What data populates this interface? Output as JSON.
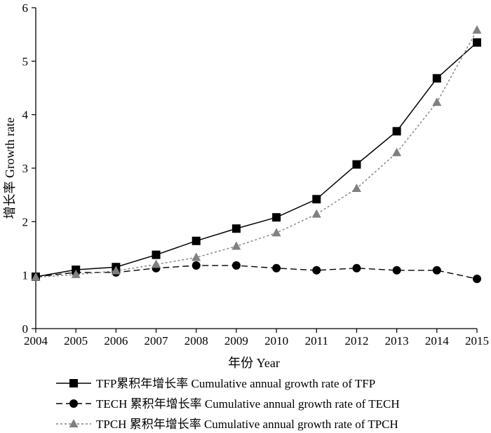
{
  "chart_data": {
    "type": "line",
    "x": [
      2004,
      2005,
      2006,
      2007,
      2008,
      2009,
      2010,
      2011,
      2012,
      2013,
      2014,
      2015
    ],
    "xlabel": "年份 Year",
    "ylabel": "增长率 Growth rate",
    "ylim": [
      0,
      6
    ],
    "yticks": [
      0,
      1,
      2,
      3,
      4,
      5,
      6
    ],
    "grid": false,
    "legend_position": "bottom",
    "series": [
      {
        "name": "TFP累积年增长率 Cumulative annual growth rate of TFP",
        "marker": "square",
        "line": "solid",
        "color": "#000000",
        "values": [
          0.97,
          1.1,
          1.15,
          1.38,
          1.64,
          1.87,
          2.08,
          2.42,
          3.07,
          3.69,
          4.68,
          5.35
        ]
      },
      {
        "name": "TECH 累积年增长率 Cumulative annual growth rate of TECH",
        "marker": "circle",
        "line": "dashed",
        "color": "#000000",
        "values": [
          0.97,
          1.05,
          1.05,
          1.13,
          1.18,
          1.18,
          1.13,
          1.09,
          1.13,
          1.09,
          1.09,
          0.93
        ]
      },
      {
        "name": "TPCH 累积年增长率 Cumulative annual growth rate of TPCH",
        "marker": "triangle",
        "line": "dotted",
        "color": "#808080",
        "values": [
          0.96,
          1.01,
          1.08,
          1.2,
          1.33,
          1.54,
          1.79,
          2.14,
          2.62,
          3.29,
          4.23,
          5.58
        ]
      }
    ]
  }
}
